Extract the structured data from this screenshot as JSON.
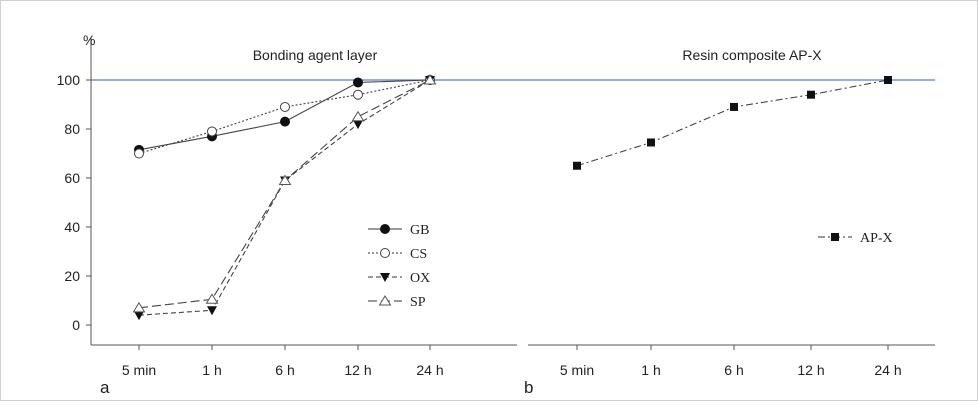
{
  "chart_data": [
    {
      "type": "line",
      "panel_label": "a",
      "title": "Bonding agent layer",
      "y_unit": "%",
      "categories": [
        "5 min",
        "1 h",
        "6 h",
        "12 h",
        "24 h"
      ],
      "yticks": [
        "0",
        "20",
        "40",
        "60",
        "80",
        "100"
      ],
      "ylim": [
        -7,
        112
      ],
      "reference_line": 100,
      "reference_color": "#5b7fc4",
      "legend_position": "center-right",
      "series": [
        {
          "name": "GB",
          "values": [
            71.5,
            77,
            83,
            99,
            100
          ],
          "marker": "filled-circle",
          "dash": "solid"
        },
        {
          "name": "CS",
          "values": [
            70,
            79,
            89,
            94,
            100
          ],
          "marker": "open-circle",
          "dash": "dotted"
        },
        {
          "name": "OX",
          "values": [
            4,
            6,
            59,
            82,
            100
          ],
          "marker": "filled-triangle-down",
          "dash": "short-dash"
        },
        {
          "name": "SP",
          "values": [
            7,
            10.5,
            59,
            85,
            100
          ],
          "marker": "open-triangle-up",
          "dash": "long-dash"
        }
      ]
    },
    {
      "type": "line",
      "panel_label": "b",
      "title": "Resin composite AP-X",
      "categories": [
        "5 min",
        "1 h",
        "6 h",
        "12 h",
        "24 h"
      ],
      "ylim": [
        -7,
        112
      ],
      "reference_line": 100,
      "reference_color": "#5b7fc4",
      "legend_position": "right",
      "series": [
        {
          "name": "AP-X",
          "values": [
            65,
            74.5,
            89,
            94,
            100
          ],
          "marker": "filled-square",
          "dash": "dash-dot"
        }
      ]
    }
  ]
}
